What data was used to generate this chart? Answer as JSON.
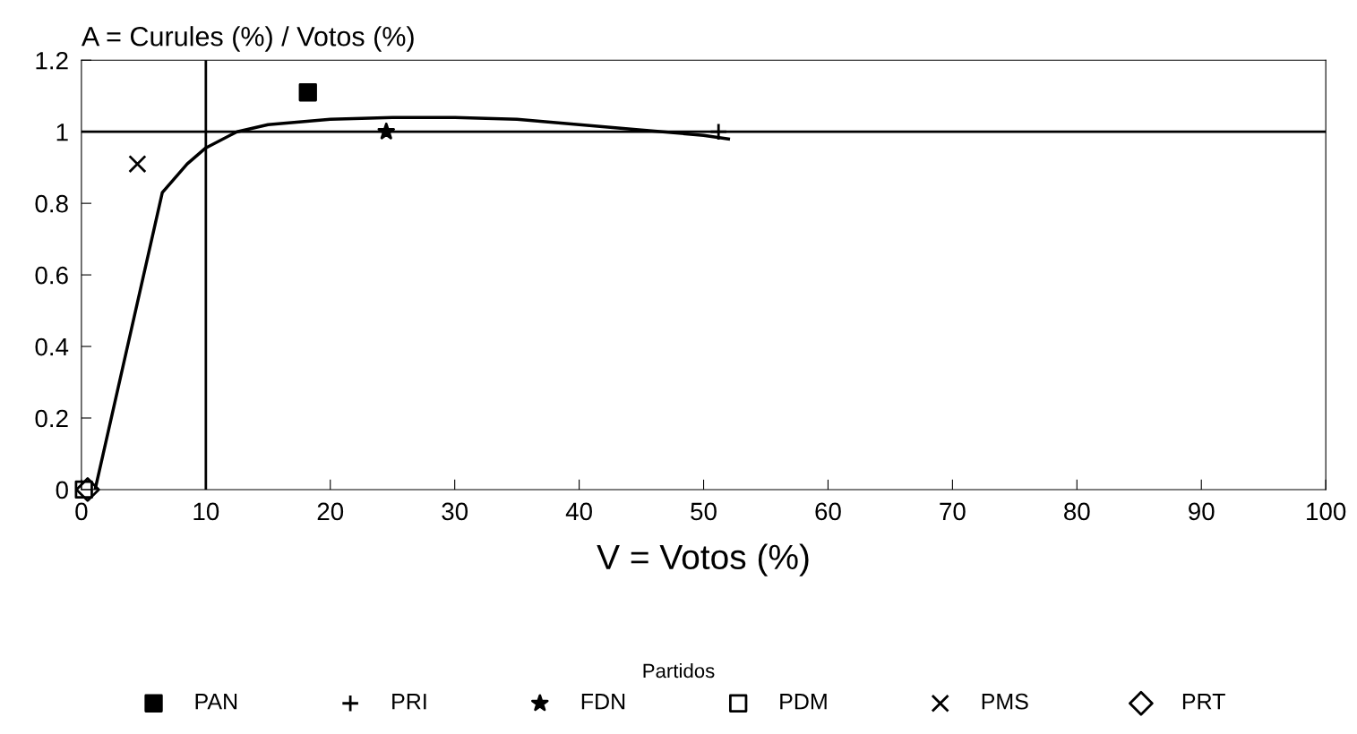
{
  "chart_data": {
    "type": "scatter",
    "ylabel": "A = Curules (%) / Votos (%)",
    "xlabel": "V = Votos (%)",
    "legend_title": "Partidos",
    "legend": "bottom",
    "xlim": [
      0,
      100
    ],
    "xticks": [
      0,
      10,
      20,
      30,
      40,
      50,
      60,
      70,
      80,
      90,
      100
    ],
    "ylim": [
      0,
      1.2
    ],
    "yticks": [
      0,
      0.2,
      0.4,
      0.6,
      0.8,
      1,
      1.2
    ],
    "grid": false,
    "series": [
      {
        "name": "PAN",
        "color": "#000000",
        "marker": "square",
        "x": [
          18.2
        ],
        "values": [
          1.11
        ]
      },
      {
        "name": "PRI",
        "color": "#000000",
        "marker": "plus",
        "x": [
          51.2
        ],
        "values": [
          1.0
        ]
      },
      {
        "name": "FDN",
        "color": "#000000",
        "marker": "star",
        "x": [
          24.5
        ],
        "values": [
          1.0
        ]
      },
      {
        "name": "PDM",
        "color": "#000000",
        "marker": "square",
        "x": [
          0.2
        ],
        "values": [
          0
        ]
      },
      {
        "name": "PMS",
        "color": "#000000",
        "marker": "cross",
        "x": [
          4.5
        ],
        "values": [
          0.91
        ]
      },
      {
        "name": "PRT",
        "color": "#000000",
        "marker": "diamond",
        "x": [
          0.5
        ],
        "values": [
          0
        ]
      },
      {
        "type": "line",
        "color": "#000000",
        "marker": "none",
        "line_style": "solid",
        "x": [
          1.1,
          6.5,
          8.5,
          10,
          12.5,
          15,
          20,
          25,
          30,
          35,
          40,
          45,
          50,
          52
        ],
        "values": [
          0,
          0.83,
          0.91,
          0.955,
          1.0,
          1.02,
          1.035,
          1.04,
          1.04,
          1.035,
          1.02,
          1.005,
          0.99,
          0.98
        ]
      }
    ],
    "ref_lines": [
      {
        "axis": "y",
        "value": 1,
        "color": "#000000",
        "line_style": "solid"
      },
      {
        "axis": "x",
        "value": 10,
        "color": "#000000",
        "line_style": "solid"
      }
    ]
  }
}
